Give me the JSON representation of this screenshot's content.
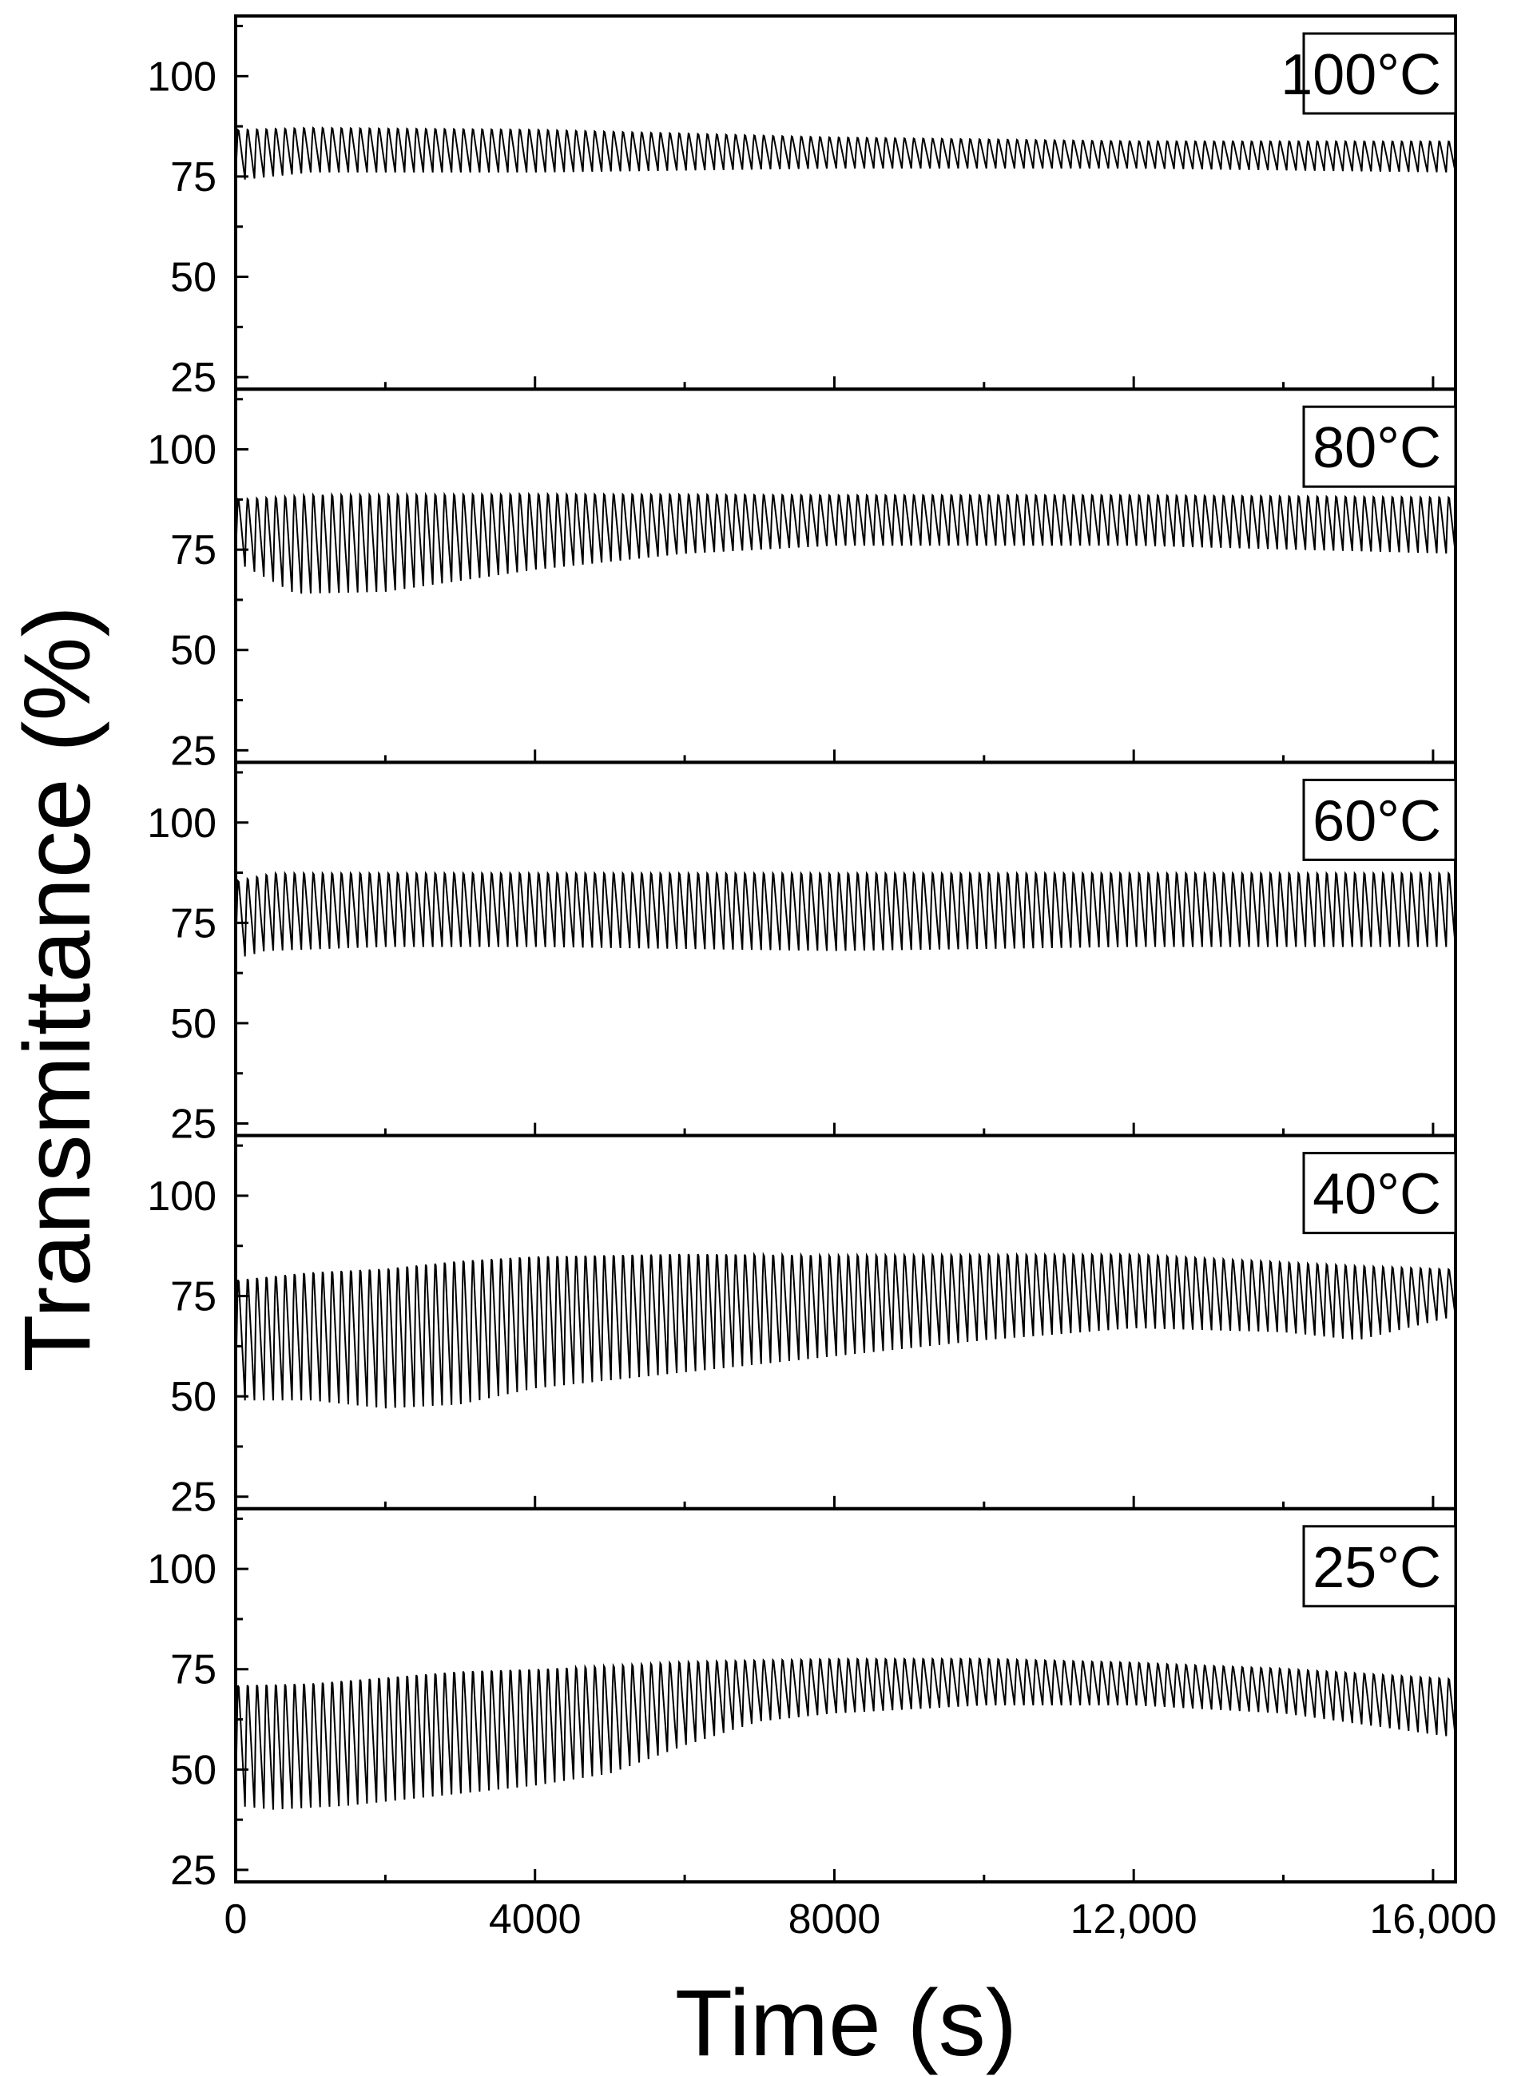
{
  "chart_data": {
    "type": "line",
    "layout": "stacked-panels",
    "xlabel": "Time (s)",
    "ylabel": "Transmittance (%)",
    "xlim": [
      0,
      16300
    ],
    "ylim": [
      22,
      115
    ],
    "x_ticks": [
      0,
      4000,
      8000,
      12000,
      16000
    ],
    "x_tick_labels": [
      "0",
      "4000",
      "8000",
      "12,000",
      "16,000"
    ],
    "x_minor_step": 2000,
    "y_ticks": [
      25,
      50,
      75,
      100
    ],
    "y_tick_labels": [
      "25",
      "50",
      "75",
      "100"
    ],
    "y_minor_step": 12.5,
    "grid": false,
    "line_color": "#000000",
    "panels": [
      {
        "label": "100°C",
        "cycles": 130,
        "max_profile": [
          [
            0,
            87
          ],
          [
            1000,
            87.5
          ],
          [
            4000,
            87
          ],
          [
            8000,
            85
          ],
          [
            12000,
            84
          ],
          [
            16300,
            84
          ]
        ],
        "min_profile": [
          [
            0,
            74
          ],
          [
            1000,
            76
          ],
          [
            4000,
            76
          ],
          [
            8000,
            77
          ],
          [
            12000,
            77
          ],
          [
            16300,
            76
          ]
        ]
      },
      {
        "label": "80°C",
        "cycles": 130,
        "max_profile": [
          [
            0,
            88
          ],
          [
            1000,
            89.5
          ],
          [
            4000,
            89.5
          ],
          [
            8000,
            89
          ],
          [
            12000,
            89
          ],
          [
            16300,
            88.5
          ]
        ],
        "min_profile": [
          [
            0,
            72
          ],
          [
            800,
            64
          ],
          [
            2000,
            64.5
          ],
          [
            4000,
            70
          ],
          [
            6000,
            74
          ],
          [
            8000,
            76
          ],
          [
            12000,
            76
          ],
          [
            16300,
            74
          ]
        ]
      },
      {
        "label": "60°C",
        "cycles": 130,
        "max_profile": [
          [
            0,
            86
          ],
          [
            500,
            88
          ],
          [
            4000,
            88
          ],
          [
            8000,
            88
          ],
          [
            12000,
            88
          ],
          [
            16300,
            88
          ]
        ],
        "min_profile": [
          [
            0,
            66
          ],
          [
            400,
            68
          ],
          [
            2000,
            69
          ],
          [
            4000,
            69
          ],
          [
            8000,
            68
          ],
          [
            12000,
            69
          ],
          [
            16300,
            69
          ]
        ]
      },
      {
        "label": "40°C",
        "cycles": 130,
        "max_profile": [
          [
            0,
            80
          ],
          [
            1000,
            82
          ],
          [
            2000,
            83
          ],
          [
            3000,
            85
          ],
          [
            4000,
            86
          ],
          [
            6000,
            86.5
          ],
          [
            8000,
            86
          ],
          [
            10000,
            86
          ],
          [
            12000,
            86
          ],
          [
            14000,
            84
          ],
          [
            16300,
            82
          ]
        ],
        "min_profile": [
          [
            0,
            49
          ],
          [
            1000,
            49
          ],
          [
            2000,
            47
          ],
          [
            3000,
            48
          ],
          [
            4000,
            52
          ],
          [
            6000,
            56
          ],
          [
            8000,
            60
          ],
          [
            10000,
            64
          ],
          [
            12000,
            67
          ],
          [
            14000,
            66
          ],
          [
            15000,
            64
          ],
          [
            16300,
            70
          ]
        ]
      },
      {
        "label": "25°C",
        "cycles": 130,
        "max_profile": [
          [
            0,
            72
          ],
          [
            1000,
            72.5
          ],
          [
            2000,
            74
          ],
          [
            3000,
            75.5
          ],
          [
            4000,
            76
          ],
          [
            6000,
            77.5
          ],
          [
            8000,
            78
          ],
          [
            10000,
            78
          ],
          [
            12000,
            77
          ],
          [
            14000,
            75.5
          ],
          [
            16300,
            73
          ]
        ],
        "min_profile": [
          [
            0,
            41
          ],
          [
            500,
            40
          ],
          [
            1500,
            41
          ],
          [
            3000,
            44
          ],
          [
            4000,
            46
          ],
          [
            5000,
            49
          ],
          [
            6000,
            56
          ],
          [
            7000,
            62
          ],
          [
            8000,
            64
          ],
          [
            10000,
            66
          ],
          [
            12000,
            66
          ],
          [
            14000,
            64
          ],
          [
            16300,
            58
          ]
        ]
      }
    ]
  }
}
